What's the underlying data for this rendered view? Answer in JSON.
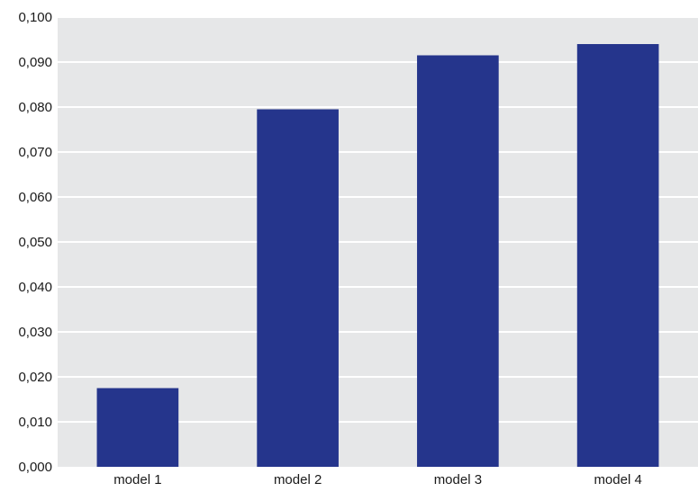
{
  "chart_data": {
    "type": "bar",
    "categories": [
      "model 1",
      "model 2",
      "model 3",
      "model 4"
    ],
    "values": [
      0.0175,
      0.0795,
      0.0915,
      0.094
    ],
    "title": "",
    "xlabel": "",
    "ylabel": "",
    "ylim": [
      0,
      0.1
    ],
    "yticks": [
      "0,000",
      "0,010",
      "0,020",
      "0,030",
      "0,040",
      "0,050",
      "0,060",
      "0,070",
      "0,080",
      "0,090",
      "0,100"
    ],
    "grid": true,
    "legend": "none",
    "colors": {
      "bar": "#25358c",
      "plot_background": "#e6e7e8",
      "gridline": "#ffffff"
    }
  }
}
